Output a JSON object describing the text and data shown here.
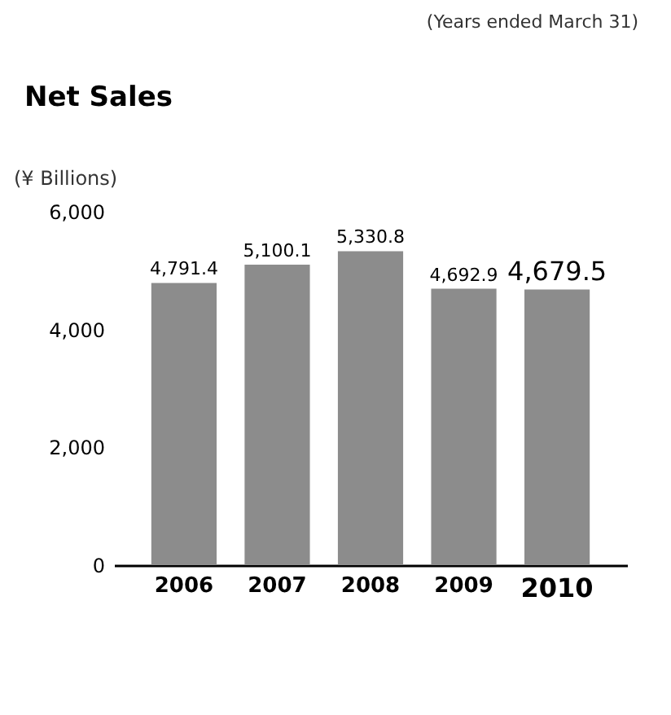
{
  "chart_data": {
    "type": "bar",
    "title": "Net Sales",
    "ylabel": "(¥ Billions)",
    "annotations": [
      "(Years ended March 31)"
    ],
    "categories": [
      "2006",
      "2007",
      "2008",
      "2009",
      "2010"
    ],
    "values": [
      4791.4,
      5100.1,
      5330.8,
      4692.9,
      4679.5
    ],
    "value_labels": [
      "4,791.4",
      "5,100.1",
      "5,330.8",
      "4,692.9",
      "4,679.5"
    ],
    "color": "#8c8c8c",
    "ylim": [
      0,
      6000
    ],
    "yticks": [
      0,
      {
        "value": 2000,
        "label": "2,000"
      },
      {
        "value": 4000,
        "label": "4,000"
      },
      {
        "value": 6000,
        "label": "6,000"
      }
    ],
    "grid": false
  }
}
